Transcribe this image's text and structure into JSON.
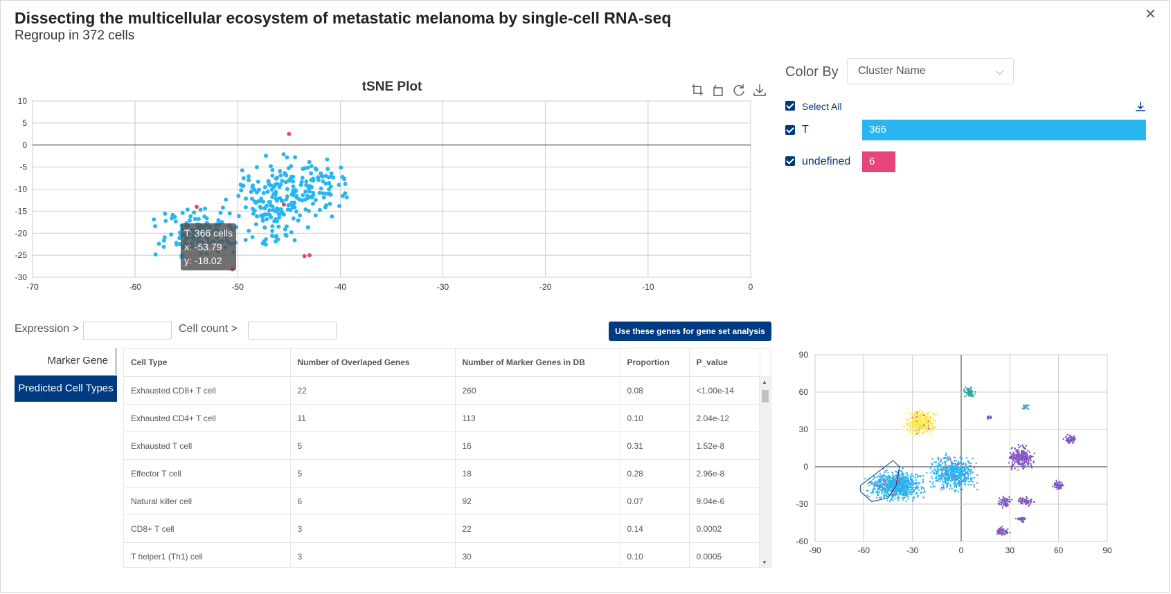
{
  "header": {
    "title": "Dissecting the multicellular ecosystem of metastatic melanoma by single-cell RNA-seq",
    "subtitle": "Regroup in 372 cells",
    "close_icon": "close-icon"
  },
  "tsne": {
    "title": "tSNE Plot",
    "tools": [
      "zoom-select-icon",
      "zoom-reset-icon",
      "refresh-icon",
      "download-icon"
    ],
    "tooltip": {
      "line1": "T: 366 cells",
      "line2": "x: -53.79",
      "line3": "y: -18.02"
    }
  },
  "chart_data": [
    {
      "type": "scatter",
      "title": "tSNE Plot",
      "xlim": [
        -70,
        0
      ],
      "ylim": [
        -30,
        10
      ],
      "xticks": [
        -70,
        -60,
        -50,
        -40,
        -30,
        -20,
        -10,
        0
      ],
      "yticks": [
        10,
        5,
        0,
        -5,
        -10,
        -15,
        -20,
        -25,
        -30
      ],
      "series": [
        {
          "name": "T",
          "color": "#29b6f0",
          "count": 366,
          "cluster_range": {
            "x": [
              -61,
              -38
            ],
            "y": [
              -28,
              5.5
            ]
          }
        },
        {
          "name": "undefined",
          "color": "#e8437a",
          "count": 6,
          "points": [
            [
              -45,
              2.5
            ],
            [
              -50.5,
              -28.2
            ],
            [
              -43.5,
              -25.2
            ],
            [
              -45.5,
              -13.5
            ],
            [
              -43,
              -25
            ],
            [
              -54,
              -14
            ]
          ]
        }
      ]
    },
    {
      "type": "scatter",
      "xlim": [
        -90,
        90
      ],
      "ylim": [
        -60,
        90
      ],
      "xticks": [
        -90,
        -60,
        -30,
        0,
        30,
        60,
        90
      ],
      "yticks": [
        90,
        60,
        30,
        0,
        -30,
        -60
      ]
    }
  ],
  "filters": {
    "expression_label": "Expression >",
    "expression_value": "",
    "cellcount_label": "Cell count >",
    "cellcount_value": "",
    "gene_button": "Use these genes for gene set analysis"
  },
  "tabs": {
    "marker": "Marker Gene",
    "predicted": "Predicted Cell Types"
  },
  "table": {
    "headers": [
      "Cell Type",
      "Number of Overlaped Genes",
      "Number of Marker Genes in DB",
      "Proportion",
      "P_value"
    ],
    "rows": [
      [
        "Exhausted CD8+ T cell",
        "22",
        "260",
        "0.08",
        "<1.00e-14"
      ],
      [
        "Exhausted CD4+ T cell",
        "11",
        "113",
        "0.10",
        "2.04e-12"
      ],
      [
        "Exhausted T cell",
        "5",
        "16",
        "0.31",
        "1.52e-8"
      ],
      [
        "Effector T cell",
        "5",
        "18",
        "0.28",
        "2.96e-8"
      ],
      [
        "Natural killer cell",
        "6",
        "92",
        "0.07",
        "9.04e-6"
      ],
      [
        "CD8+ T cell",
        "3",
        "22",
        "0.14",
        "0.0002"
      ],
      [
        "T helper1 (Th1) cell",
        "3",
        "30",
        "0.10",
        "0.0005"
      ]
    ]
  },
  "colorby": {
    "label": "Color By",
    "selected": "Cluster Name",
    "select_all": "Select All",
    "legend": [
      {
        "name": "T",
        "count": "366",
        "color": "#29b6f0",
        "fraction": 1.0
      },
      {
        "name": "undefined",
        "count": "6",
        "color": "#e8437a",
        "fraction": 0.118
      }
    ]
  }
}
